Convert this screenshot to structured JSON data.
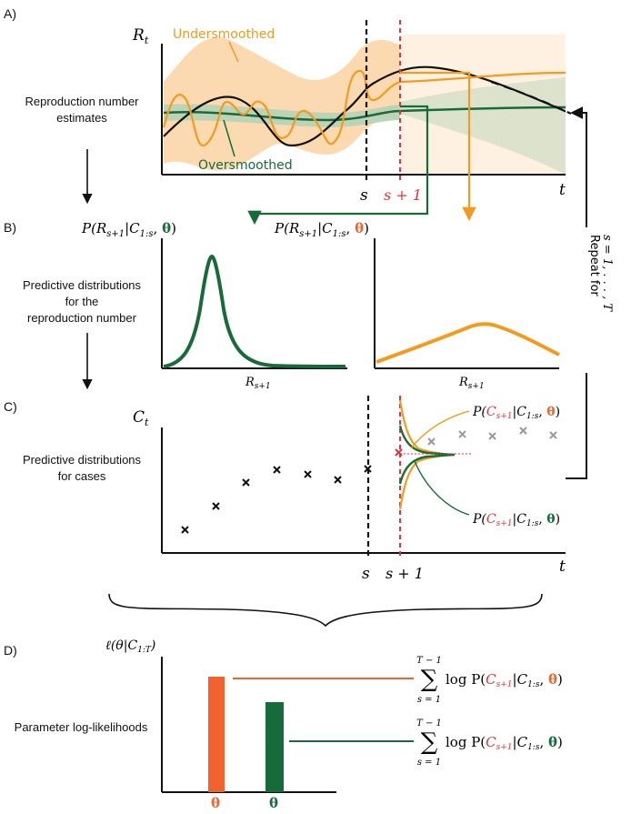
{
  "colors": {
    "orange": "#f39a1f",
    "orange_fill": "#fbd6a8",
    "green": "#176b3a",
    "green_fill": "#b9d3b5",
    "red": "#e8323a",
    "red_bar": "#f2622f",
    "gray": "#999999",
    "black": "#111111"
  },
  "panel_a": {
    "panel_label": "A)",
    "y_axis": "R",
    "y_axis_sub": "t",
    "x_axis": "t",
    "row_label_line1": "Reproduction number",
    "row_label_line2": "estimates",
    "undersmoothed": "Undersmoothed",
    "oversmoothed": "Oversmoothed",
    "s_tick": "s",
    "s1_tick": "s + 1"
  },
  "panel_b": {
    "panel_label": "B)",
    "row_label_line1": "Predictive distributions",
    "row_label_line2": "for the",
    "row_label_line3": "reproduction number",
    "left_title": "P(R",
    "left_title_sub": "s+1",
    "left_title_mid": "|C",
    "left_title_sub2": "1:s",
    "left_title_end": ", ",
    "theta": "θ",
    "close": ")",
    "x_axis": "R",
    "x_axis_sub": "s+1"
  },
  "panel_c": {
    "panel_label": "C)",
    "y_axis": "C",
    "y_axis_sub": "t",
    "x_axis": "t",
    "row_label_line1": "Predictive distributions",
    "row_label_line2": "for cases",
    "s_tick": "s",
    "s1_tick": "s + 1",
    "dist_prefix": "P(",
    "dist_var": "C",
    "dist_var_sub": "s+1",
    "dist_cond": "|C",
    "dist_cond_sub": "1:s",
    "repeat_line1": "Repeat for",
    "repeat_line2": "s = 1, . . . , T"
  },
  "panel_d": {
    "panel_label": "D)",
    "y_axis": "ℓ(θ|C",
    "y_axis_sub": "1:T",
    "y_axis_end": ")",
    "row_label": "Parameter log-likelihoods",
    "sum_upper": "T − 1",
    "sum_lower": "s = 1",
    "sum_symbol": "∑",
    "log_text": "log P(",
    "theta": "θ",
    "bar_orange_level": 0.74,
    "bar_green_level": 0.58
  }
}
